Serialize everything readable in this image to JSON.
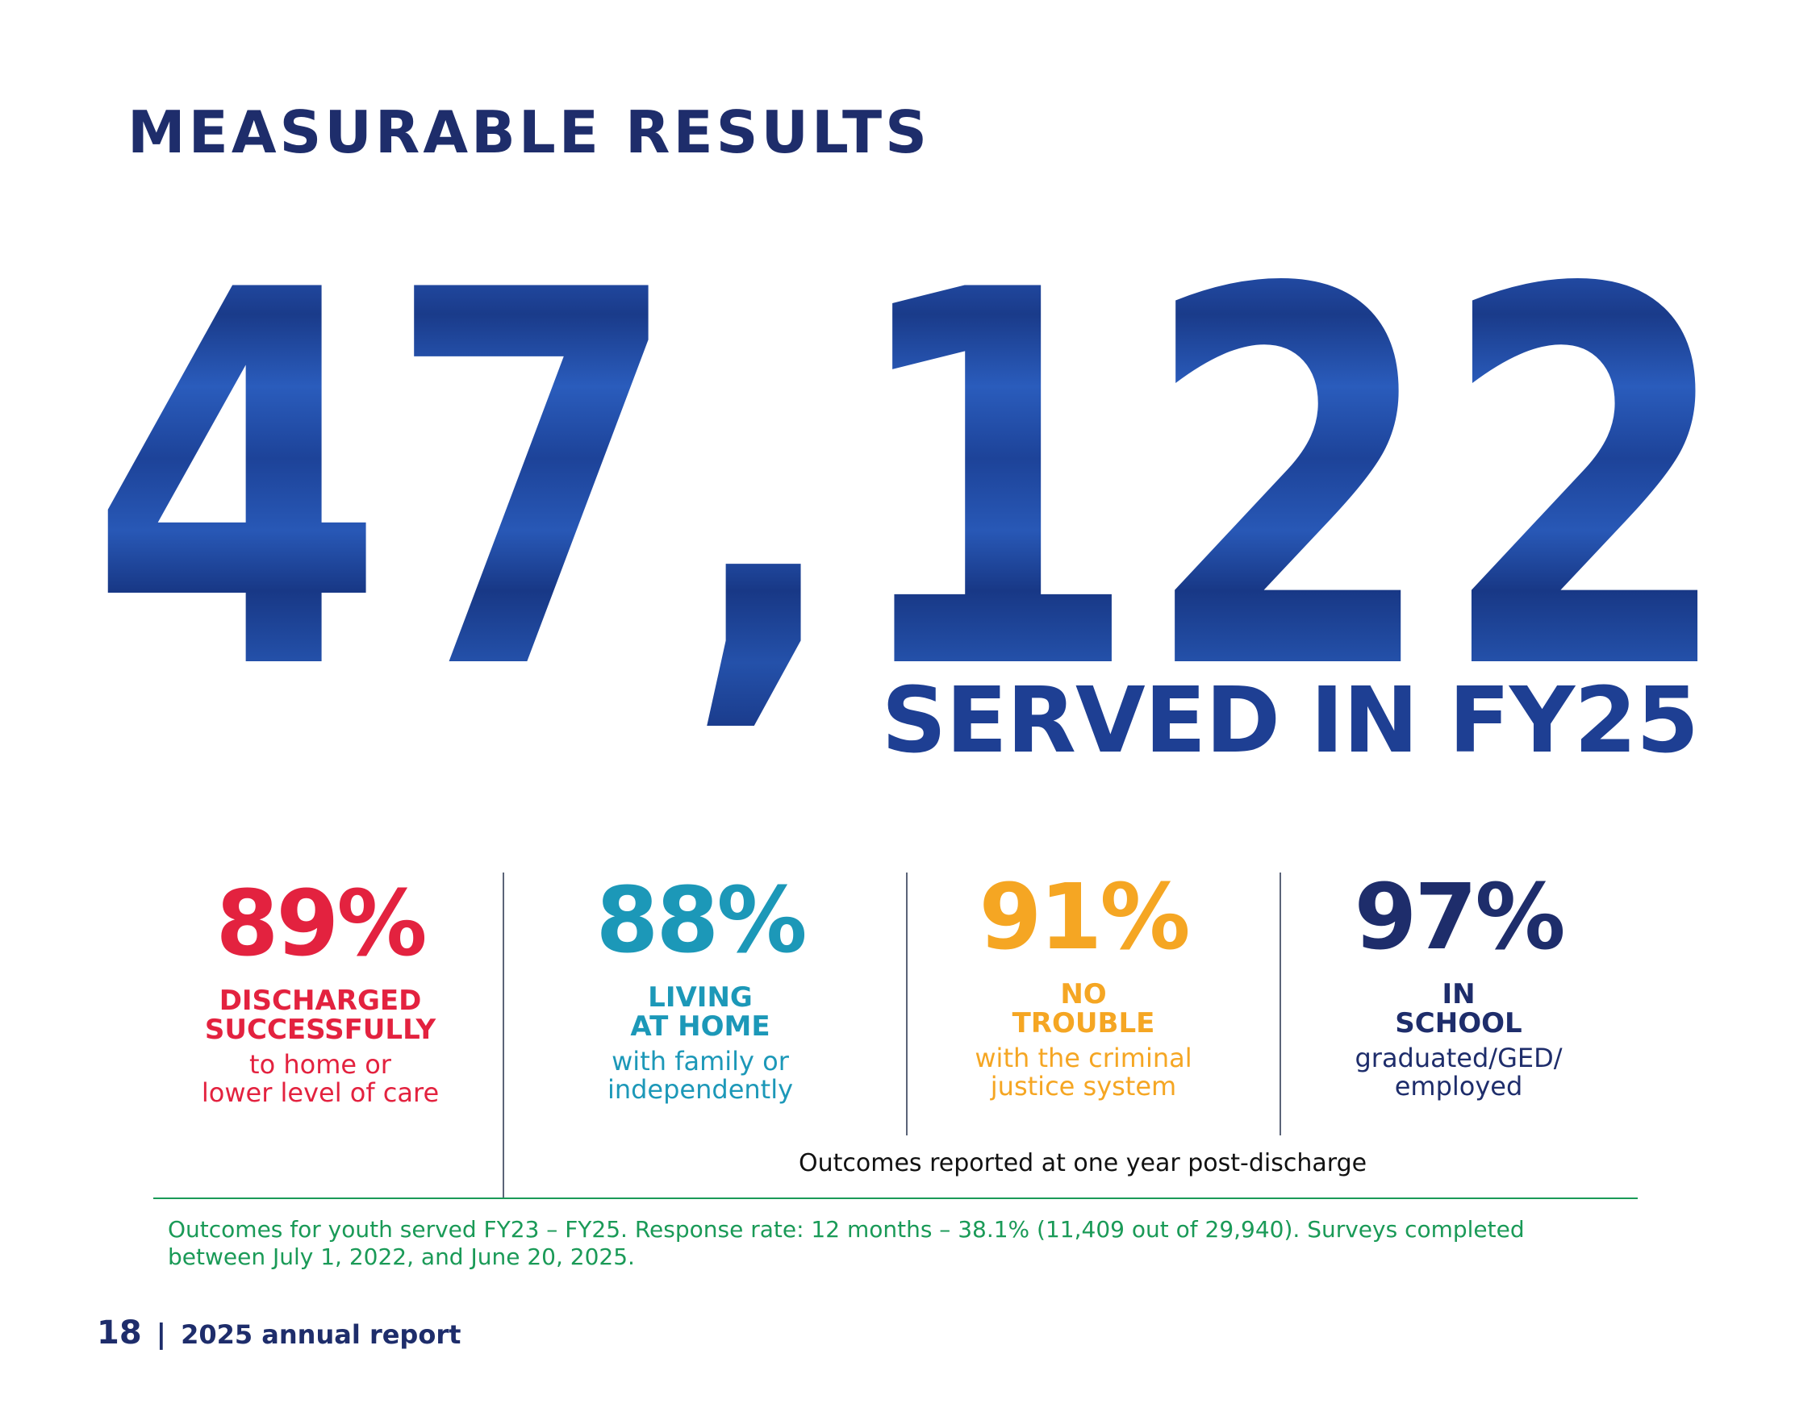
{
  "page": {
    "title": "MEASURABLE RESULTS",
    "big_number": "47,122",
    "big_number_label": "SERVED IN FY25"
  },
  "stats": [
    {
      "percent": "89%",
      "heading_line1": "DISCHARGED",
      "heading_line2": "SUCCESSFULLY",
      "sub_line1": "to home or",
      "sub_line2": "lower level of care",
      "color": "#e3223f"
    },
    {
      "percent": "88%",
      "heading_line1": "LIVING",
      "heading_line2": "AT HOME",
      "sub_line1": "with family or",
      "sub_line2": "independently",
      "color": "#1c98b8"
    },
    {
      "percent": "91%",
      "heading_line1": "NO",
      "heading_line2": "TROUBLE",
      "sub_line1": "with the criminal",
      "sub_line2": "justice system",
      "color": "#f5a623"
    },
    {
      "percent": "97%",
      "heading_line1": "IN",
      "heading_line2": "SCHOOL",
      "sub_line1": "graduated/GED/",
      "sub_line2": "employed",
      "color": "#1e2d6b"
    }
  ],
  "outcomes_note": "Outcomes reported at one year post-discharge",
  "footnote": "Outcomes for youth served FY23 – FY25. Response rate: 12 months – 38.1% (11,409 out of 29,940). Surveys completed between July 1, 2022, and June 20, 2025.",
  "footer": {
    "page_number": "18",
    "separator": "|",
    "report_label": "2025 annual report"
  },
  "colors": {
    "navy": "#1e2d6b",
    "big_number_blue": "#1e48a0",
    "served_blue": "#1e3f93",
    "footnote_green": "#1a9a57"
  }
}
